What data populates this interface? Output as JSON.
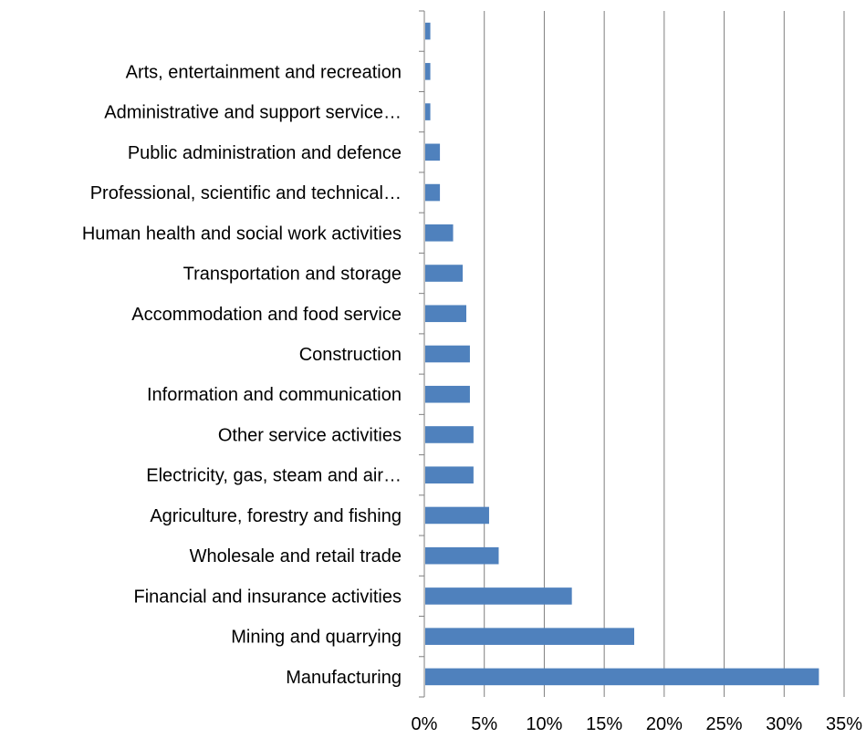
{
  "chart_data": {
    "type": "bar",
    "orientation": "horizontal",
    "categories": [
      "Manufacturing",
      "Mining and quarrying",
      "Financial and insurance activities",
      "Wholesale and retail trade",
      "Agriculture, forestry and fishing",
      "Electricity, gas, steam and air…",
      "Other service activities",
      "Information and communication",
      "Construction",
      "Accommodation and food service",
      "Transportation and storage",
      "Human health and social work activities",
      "Professional, scientific and technical…",
      "Public administration and defence",
      "Administrative and support service…",
      "Arts, entertainment and recreation",
      ""
    ],
    "values": [
      32.9,
      17.5,
      12.3,
      6.2,
      5.4,
      4.1,
      4.1,
      3.8,
      3.8,
      3.5,
      3.2,
      2.4,
      1.3,
      1.3,
      0.5,
      0.5,
      0.5
    ],
    "xlim": [
      0,
      35
    ],
    "x_ticks": [
      "0%",
      "5%",
      "10%",
      "15%",
      "20%",
      "25%",
      "30%",
      "35%"
    ],
    "grid": "vertical",
    "legend": "none",
    "title": "",
    "xlabel": "",
    "ylabel": "",
    "colors": {
      "bar": "#4f81bd",
      "grid": "#7f7f7f",
      "axis": "#7f7f7f"
    }
  }
}
